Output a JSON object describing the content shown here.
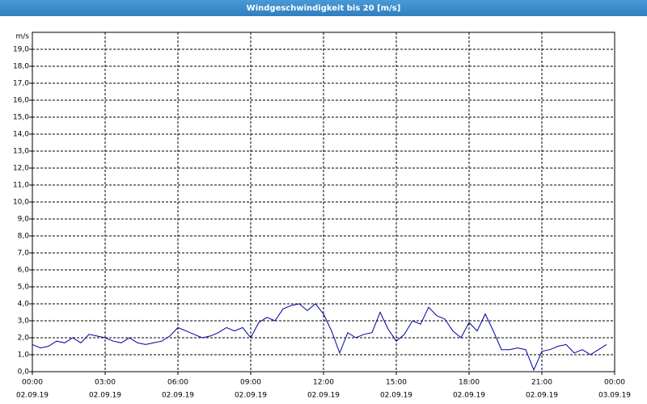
{
  "chart_data": {
    "type": "line",
    "title": "Windgeschwindigkeit bis 20 [m/s]",
    "y_label": "m/s",
    "x": [
      0,
      20,
      40,
      60,
      80,
      100,
      120,
      140,
      160,
      180,
      200,
      220,
      240,
      260,
      280,
      300,
      320,
      340,
      360,
      380,
      400,
      420,
      440,
      460,
      480,
      500,
      520,
      540,
      560,
      580,
      600,
      620,
      640,
      660,
      680,
      700,
      720,
      740,
      760,
      780,
      800,
      820,
      840,
      860,
      880,
      900,
      920,
      940,
      960,
      980,
      1000,
      1020,
      1040,
      1060,
      1080,
      1100,
      1120,
      1140,
      1160,
      1180,
      1200,
      1220,
      1240,
      1260,
      1280,
      1300,
      1320,
      1340,
      1360,
      1380,
      1400,
      1420
    ],
    "values": [
      1.6,
      1.4,
      1.5,
      1.8,
      1.7,
      2.0,
      1.7,
      2.2,
      2.1,
      2.0,
      1.8,
      1.7,
      2.0,
      1.7,
      1.6,
      1.7,
      1.8,
      2.1,
      2.6,
      2.4,
      2.2,
      2.0,
      2.1,
      2.3,
      2.6,
      2.4,
      2.6,
      2.0,
      2.9,
      3.2,
      3.0,
      3.7,
      3.9,
      4.0,
      3.6,
      4.0,
      3.4,
      2.4,
      1.1,
      2.3,
      2.0,
      2.2,
      2.3,
      3.5,
      2.5,
      1.8,
      2.2,
      3.0,
      2.8,
      3.8,
      3.3,
      3.1,
      2.4,
      2.0,
      2.9,
      2.4,
      3.4,
      2.4,
      1.3,
      1.3,
      1.4,
      1.3,
      0.1,
      1.2,
      1.3,
      1.5,
      1.6,
      1.1,
      1.3,
      1.0,
      1.3,
      1.6
    ],
    "color": "#0000a0",
    "xlim": [
      0,
      1440
    ],
    "xticks": [
      {
        "value": 0,
        "label": "00:00"
      },
      {
        "value": 180,
        "label": "03:00"
      },
      {
        "value": 360,
        "label": "06:00"
      },
      {
        "value": 540,
        "label": "09:00"
      },
      {
        "value": 720,
        "label": "12:00"
      },
      {
        "value": 900,
        "label": "15:00"
      },
      {
        "value": 1080,
        "label": "18:00"
      },
      {
        "value": 1260,
        "label": "21:00"
      },
      {
        "value": 1440,
        "label": "00:00"
      }
    ],
    "xtick_dates": [
      "02.09.19",
      "02.09.19",
      "02.09.19",
      "02.09.19",
      "02.09.19",
      "02.09.19",
      "02.09.19",
      "02.09.19",
      "03.09.19"
    ],
    "ylim": [
      0,
      20
    ],
    "yticks": [
      {
        "value": 0,
        "label": "0,0"
      },
      {
        "value": 1,
        "label": "1,0"
      },
      {
        "value": 2,
        "label": "2,0"
      },
      {
        "value": 3,
        "label": "3,0"
      },
      {
        "value": 4,
        "label": "4,0"
      },
      {
        "value": 5,
        "label": "5,0"
      },
      {
        "value": 6,
        "label": "6,0"
      },
      {
        "value": 7,
        "label": "7,0"
      },
      {
        "value": 8,
        "label": "8,0"
      },
      {
        "value": 9,
        "label": "9,0"
      },
      {
        "value": 10,
        "label": "10,0"
      },
      {
        "value": 11,
        "label": "11,0"
      },
      {
        "value": 12,
        "label": "12,0"
      },
      {
        "value": 13,
        "label": "13,0"
      },
      {
        "value": 14,
        "label": "14,0"
      },
      {
        "value": 15,
        "label": "15,0"
      },
      {
        "value": 16,
        "label": "16,0"
      },
      {
        "value": 17,
        "label": "17,0"
      },
      {
        "value": 18,
        "label": "18,0"
      },
      {
        "value": 19,
        "label": "19,0"
      }
    ],
    "grid": true
  }
}
